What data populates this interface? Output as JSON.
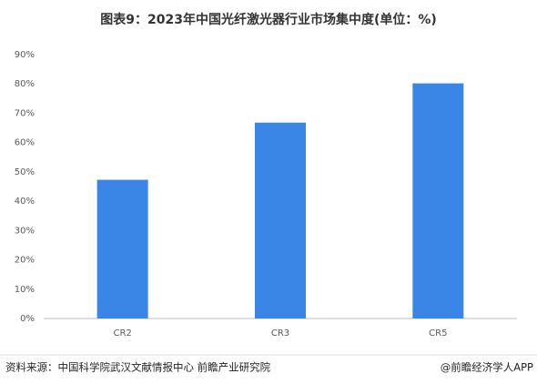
{
  "chart_data": {
    "type": "bar",
    "title": "图表9：2023年中国光纤激光器行业市场集中度(单位：%)",
    "categories": [
      "CR2",
      "CR3",
      "CR5"
    ],
    "values": [
      47.3,
      66.8,
      80.2
    ],
    "color": "#3a86e6",
    "ylim": [
      0,
      90
    ],
    "yticks": [
      {
        "value": 0,
        "label": "0%"
      },
      {
        "value": 10,
        "label": "10%"
      },
      {
        "value": 20,
        "label": "20%"
      },
      {
        "value": 30,
        "label": "30%"
      },
      {
        "value": 40,
        "label": "40%"
      },
      {
        "value": 50,
        "label": "50%"
      },
      {
        "value": 60,
        "label": "60%"
      },
      {
        "value": 70,
        "label": "70%"
      },
      {
        "value": 80,
        "label": "80%"
      },
      {
        "value": 90,
        "label": "90%"
      }
    ],
    "grid": false
  },
  "footer": {
    "source": "资料来源：中国科学院武汉文献情报中心 前瞻产业研究院",
    "credit": "@前瞻经济学人APP"
  }
}
